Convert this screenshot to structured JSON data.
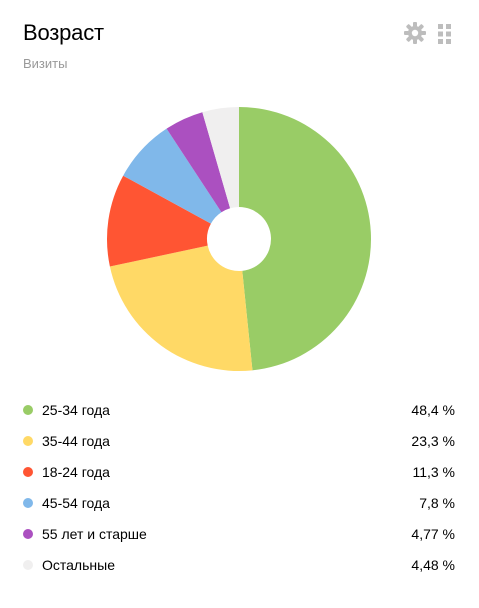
{
  "header": {
    "title": "Возраст",
    "subtitle": "Визиты",
    "settings_icon": "gear-icon",
    "drag_icon": "grip-icon"
  },
  "chart_data": {
    "type": "pie",
    "donut": true,
    "title": "Возраст",
    "subtitle": "Визиты",
    "categories": [
      "25-34 года",
      "35-44 года",
      "18-24 года",
      "45-54 года",
      "55 лет и старше",
      "Остальные"
    ],
    "values": [
      48.4,
      23.3,
      11.3,
      7.8,
      4.77,
      4.48
    ],
    "value_labels": [
      "48,4 %",
      "23,3 %",
      "11,3 %",
      "7,8 %",
      "4,77 %",
      "4,48 %"
    ],
    "colors": [
      "#99cc66",
      "#ffd966",
      "#ff5533",
      "#80b8ea",
      "#ab50c0",
      "#f0efef"
    ],
    "legend_position": "bottom"
  }
}
